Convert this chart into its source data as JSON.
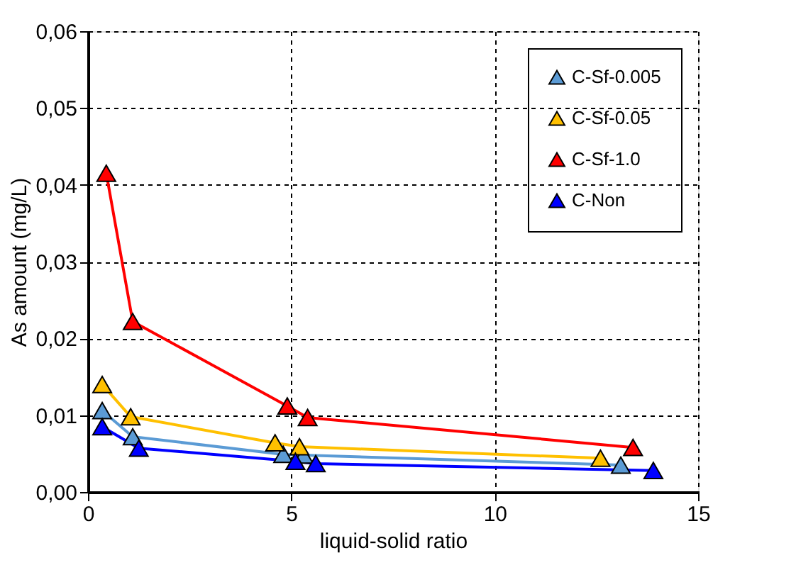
{
  "chart_data": {
    "type": "line",
    "xlabel": "liquid-solid ratio",
    "ylabel": "As amount (mg/L)",
    "xlim": [
      0,
      15
    ],
    "xticks": [
      0,
      5,
      10,
      15
    ],
    "ylim": [
      0,
      0.06
    ],
    "yticks": [
      {
        "value": 0,
        "label": "0,00"
      },
      {
        "value": 0.01,
        "label": "0,01"
      },
      {
        "value": 0.02,
        "label": "0,02"
      },
      {
        "value": 0.03,
        "label": "0,03"
      },
      {
        "value": 0.04,
        "label": "0,04"
      },
      {
        "value": 0.05,
        "label": "0,05"
      },
      {
        "value": 0.06,
        "label": "0,06"
      }
    ],
    "grid": true,
    "legend": "top right",
    "marker": "triangle",
    "line_style": "solid",
    "series": [
      {
        "name": "C-Sf-0.005",
        "color": "#5b9bd5",
        "x": [
          0.35,
          1.1,
          4.8,
          5.3,
          13.1
        ],
        "values": [
          0.0106,
          0.0072,
          0.0049,
          0.0048,
          0.0035
        ]
      },
      {
        "name": "C-Sf-0.05",
        "color": "#ffc000",
        "x": [
          0.35,
          1.05,
          4.6,
          5.2,
          12.6
        ],
        "values": [
          0.014,
          0.0098,
          0.0064,
          0.0059,
          0.0044
        ]
      },
      {
        "name": "C-Sf-1.0",
        "color": "#ff0000",
        "x": [
          0.45,
          1.1,
          4.9,
          5.4,
          13.4
        ],
        "values": [
          0.0415,
          0.0222,
          0.0112,
          0.0097,
          0.0058
        ]
      },
      {
        "name": "C-Non",
        "color": "#0000ff",
        "x": [
          0.35,
          1.25,
          5.1,
          5.6,
          13.9
        ],
        "values": [
          0.0085,
          0.0057,
          0.004,
          0.0037,
          0.0028
        ]
      }
    ]
  }
}
